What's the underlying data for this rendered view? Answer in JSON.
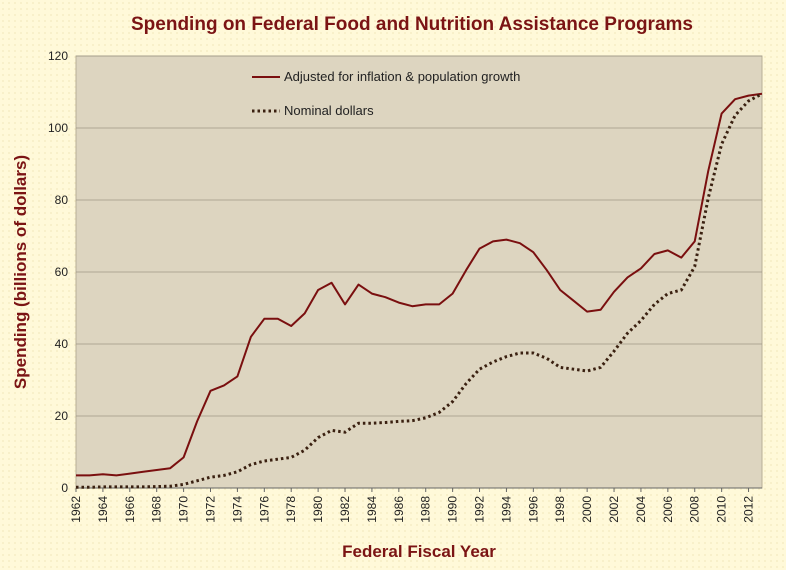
{
  "chart_data": {
    "type": "line",
    "title": "Spending on Federal Food and Nutrition Assistance Programs",
    "xlabel": "Federal Fiscal  Year",
    "ylabel": "Spending (billions of dollars)",
    "ylim": [
      0,
      120
    ],
    "yticks": [
      0,
      20,
      40,
      60,
      80,
      100,
      120
    ],
    "xlim": [
      1962,
      2013
    ],
    "xtick_labels": [
      "1962",
      "1964",
      "1966",
      "1968",
      "1970",
      "1972",
      "1974",
      "1976",
      "1978",
      "1980",
      "1982",
      "1984",
      "1986",
      "1988",
      "1990",
      "1992",
      "1994",
      "1996",
      "1998",
      "2000",
      "2002",
      "2004",
      "2006",
      "2008",
      "2010",
      "2012"
    ],
    "grid": "horizontal",
    "legend_position": "top-left",
    "colors": {
      "plot_bg": "#DDD5C0",
      "line": "#7A0F0F",
      "text_accent": "#7B1414",
      "page_bg": "#FFF9D9"
    },
    "x": [
      1962,
      1963,
      1964,
      1965,
      1966,
      1967,
      1968,
      1969,
      1970,
      1971,
      1972,
      1973,
      1974,
      1975,
      1976,
      1977,
      1978,
      1979,
      1980,
      1981,
      1982,
      1983,
      1984,
      1985,
      1986,
      1987,
      1988,
      1989,
      1990,
      1991,
      1992,
      1993,
      1994,
      1995,
      1996,
      1997,
      1998,
      1999,
      2000,
      2001,
      2002,
      2003,
      2004,
      2005,
      2006,
      2007,
      2008,
      2009,
      2010,
      2011,
      2012,
      2013
    ],
    "series": [
      {
        "name": "Adjusted for inflation & population growth",
        "style": "solid",
        "values": [
          3.5,
          3.5,
          3.8,
          3.5,
          4.0,
          4.5,
          5.0,
          5.5,
          8.5,
          18.5,
          27.0,
          28.5,
          31.0,
          42.0,
          47.0,
          47.0,
          45.0,
          48.5,
          55.0,
          57.0,
          51.0,
          56.5,
          54.0,
          53.0,
          51.5,
          50.5,
          51.0,
          51.0,
          54.0,
          60.5,
          66.5,
          68.5,
          69.0,
          68.0,
          65.5,
          60.5,
          55.0,
          52.0,
          49.0,
          49.5,
          54.5,
          58.5,
          61.0,
          65.0,
          66.0,
          64.0,
          68.5,
          88.0,
          104.0,
          108.0,
          109.0,
          109.5
        ]
      },
      {
        "name": "Nominal dollars",
        "style": "dotted",
        "values": [
          0.2,
          0.2,
          0.3,
          0.3,
          0.3,
          0.3,
          0.4,
          0.5,
          1.0,
          2.0,
          3.0,
          3.5,
          4.5,
          6.5,
          7.5,
          8.0,
          8.5,
          10.5,
          14.0,
          16.0,
          15.5,
          18.0,
          18.0,
          18.2,
          18.5,
          18.7,
          19.5,
          21.0,
          24.0,
          29.0,
          33.0,
          35.0,
          36.5,
          37.5,
          37.5,
          36.0,
          33.5,
          33.0,
          32.5,
          33.5,
          38.0,
          43.0,
          46.5,
          51.0,
          54.0,
          55.0,
          61.5,
          80.5,
          95.5,
          103.5,
          107.5,
          109.5
        ]
      }
    ]
  }
}
